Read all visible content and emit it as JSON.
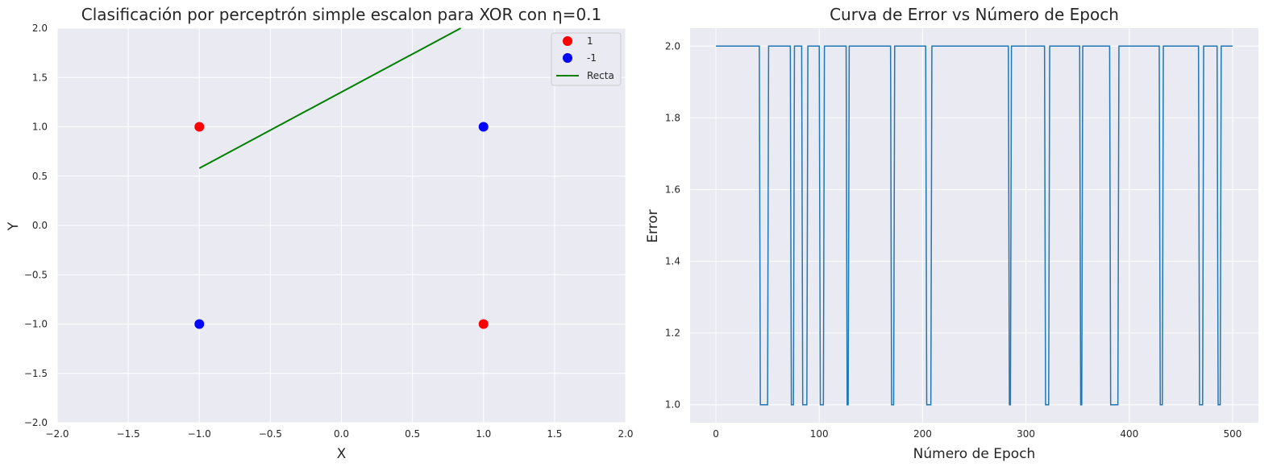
{
  "chart_data": [
    {
      "type": "scatter",
      "title": "Clasificación por perceptrón simple escalon para XOR con η=0.1",
      "xlabel": "X",
      "ylabel": "Y",
      "xlim": [
        -2,
        2
      ],
      "ylim": [
        -2,
        2
      ],
      "xticks": [
        -2.0,
        -1.5,
        -1.0,
        -0.5,
        0.0,
        0.5,
        1.0,
        1.5,
        2.0
      ],
      "yticks": [
        -2.0,
        -1.5,
        -1.0,
        -0.5,
        0.0,
        0.5,
        1.0,
        1.5,
        2.0
      ],
      "grid": true,
      "legend_position": "top-right",
      "series": [
        {
          "name": "1",
          "kind": "scatter",
          "color": "#ff0000",
          "points": [
            [
              -1,
              1
            ],
            [
              1,
              -1
            ]
          ]
        },
        {
          "name": "-1",
          "kind": "scatter",
          "color": "#0000ff",
          "points": [
            [
              -1,
              -1
            ],
            [
              1,
              1
            ]
          ]
        },
        {
          "name": "Recta",
          "kind": "line",
          "color": "#008000",
          "points": [
            [
              -1,
              0.58
            ],
            [
              0.84,
              2.0
            ]
          ]
        }
      ]
    },
    {
      "type": "line",
      "title": "Curva de Error vs Número de Epoch",
      "xlabel": "Número de Epoch",
      "ylabel": "Error",
      "xlim": [
        -25,
        525
      ],
      "ylim": [
        0.95,
        2.05
      ],
      "xticks": [
        0,
        100,
        200,
        300,
        400,
        500
      ],
      "yticks": [
        1.0,
        1.2,
        1.4,
        1.6,
        1.8,
        2.0
      ],
      "grid": true,
      "color": "#1f77b4",
      "series": [
        {
          "epochs": [
            0,
            42,
            43,
            50,
            51,
            72,
            73,
            75,
            76,
            83,
            84,
            88,
            89,
            100,
            101,
            104,
            105,
            126,
            127,
            128,
            129,
            169,
            170,
            172,
            173,
            203,
            204,
            208,
            209,
            283,
            284,
            285,
            286,
            318,
            319,
            322,
            323,
            352,
            353,
            354,
            355,
            381,
            382,
            389,
            390,
            429,
            430,
            432,
            433,
            467,
            468,
            471,
            472,
            485,
            486,
            488,
            489,
            500
          ],
          "values": [
            2,
            2,
            1,
            1,
            2,
            2,
            1,
            1,
            2,
            2,
            1,
            1,
            2,
            2,
            1,
            1,
            2,
            2,
            1,
            1,
            2,
            2,
            1,
            1,
            2,
            2,
            1,
            1,
            2,
            2,
            1,
            1,
            2,
            2,
            1,
            1,
            2,
            2,
            1,
            1,
            2,
            2,
            1,
            1,
            2,
            2,
            1,
            1,
            2,
            2,
            1,
            1,
            2,
            2,
            1,
            1,
            2,
            2
          ]
        }
      ]
    }
  ]
}
